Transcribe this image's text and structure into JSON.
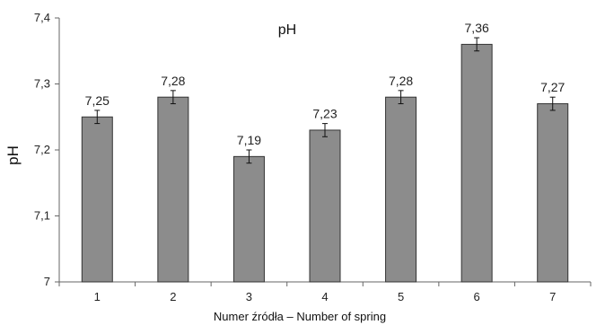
{
  "chart_data": {
    "type": "bar",
    "title": "pH",
    "xlabel": "Numer źródła – Number of spring",
    "ylabel": "pH",
    "categories": [
      "1",
      "2",
      "3",
      "4",
      "5",
      "6",
      "7"
    ],
    "values": [
      7.25,
      7.28,
      7.19,
      7.23,
      7.28,
      7.36,
      7.27
    ],
    "value_labels": [
      "7,25",
      "7,28",
      "7,19",
      "7,23",
      "7,28",
      "7,36",
      "7,27"
    ],
    "error": [
      0.01,
      0.01,
      0.01,
      0.01,
      0.01,
      0.01,
      0.01
    ],
    "ylim": [
      7.0,
      7.4
    ],
    "yticks": [
      7.0,
      7.1,
      7.2,
      7.3,
      7.4
    ],
    "ytick_labels": [
      "7",
      "7,1",
      "7,2",
      "7,3",
      "7,4"
    ],
    "grid": false,
    "bar_color": "#8c8c8c",
    "bar_edge_color": "#333333"
  }
}
